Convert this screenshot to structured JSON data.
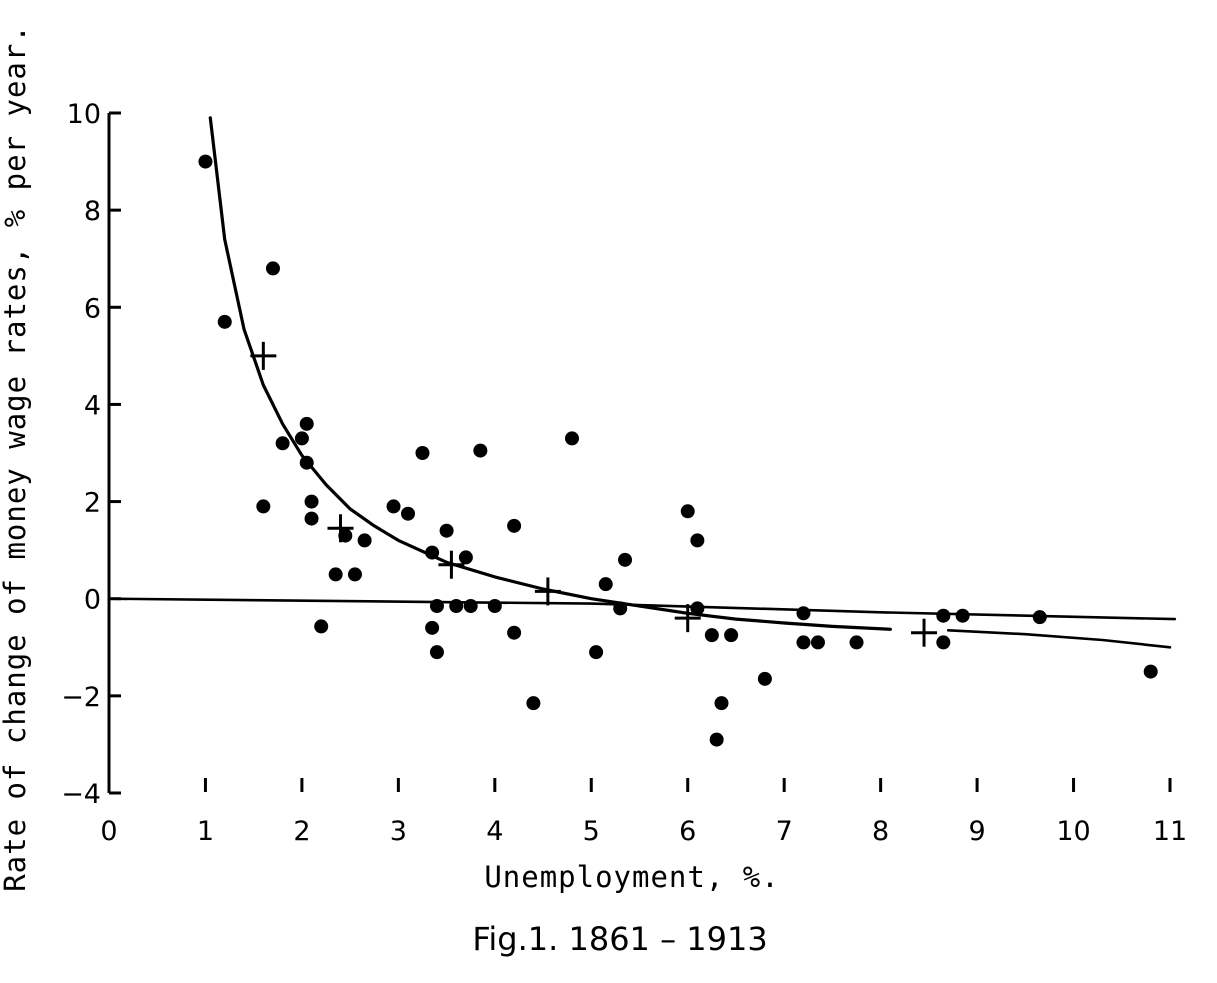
{
  "chart_data": {
    "type": "scatter",
    "title": "Fig.1. 1861 – 1913",
    "xlabel": "Unemployment, %.",
    "ylabel": "Rate of change of money wage rates, % per year.",
    "xlim": [
      0,
      11
    ],
    "ylim": [
      -4,
      10
    ],
    "x_ticks": [
      "0",
      "1",
      "2",
      "3",
      "4",
      "5",
      "6",
      "7",
      "8",
      "9",
      "10",
      "11"
    ],
    "y_ticks": [
      "10",
      "8",
      "6",
      "4",
      "2",
      "0",
      "-2",
      "-4"
    ],
    "grid": false,
    "legend": "none",
    "series": [
      {
        "marker": "dot",
        "points": [
          [
            1.0,
            9.0
          ],
          [
            1.2,
            5.7
          ],
          [
            1.6,
            1.9
          ],
          [
            1.7,
            6.8
          ],
          [
            1.8,
            3.2
          ],
          [
            2.0,
            3.3
          ],
          [
            2.05,
            3.6
          ],
          [
            2.05,
            2.8
          ],
          [
            2.1,
            2.0
          ],
          [
            2.1,
            1.65
          ],
          [
            2.2,
            -0.57
          ],
          [
            2.35,
            0.5
          ],
          [
            2.45,
            1.3
          ],
          [
            2.55,
            0.5
          ],
          [
            2.65,
            1.2
          ],
          [
            2.95,
            1.9
          ],
          [
            3.1,
            1.75
          ],
          [
            3.25,
            3.0
          ],
          [
            3.35,
            -0.6
          ],
          [
            3.35,
            0.95
          ],
          [
            3.4,
            -1.1
          ],
          [
            3.4,
            -0.15
          ],
          [
            3.5,
            1.4
          ],
          [
            3.6,
            -0.15
          ],
          [
            3.7,
            0.85
          ],
          [
            3.75,
            -0.15
          ],
          [
            3.85,
            3.05
          ],
          [
            4.0,
            -0.15
          ],
          [
            4.2,
            -0.7
          ],
          [
            4.2,
            1.5
          ],
          [
            4.4,
            -2.15
          ],
          [
            4.8,
            3.3
          ],
          [
            5.05,
            -1.1
          ],
          [
            5.15,
            0.3
          ],
          [
            5.3,
            -0.2
          ],
          [
            5.35,
            0.8
          ],
          [
            6.0,
            1.8
          ],
          [
            6.1,
            1.2
          ],
          [
            6.1,
            -0.2
          ],
          [
            6.25,
            -0.75
          ],
          [
            6.3,
            -2.9
          ],
          [
            6.35,
            -2.15
          ],
          [
            6.45,
            -0.75
          ],
          [
            6.8,
            -1.65
          ],
          [
            7.2,
            -0.3
          ],
          [
            7.2,
            -0.9
          ],
          [
            7.35,
            -0.9
          ],
          [
            7.75,
            -0.9
          ],
          [
            8.65,
            -0.35
          ],
          [
            8.65,
            -0.9
          ],
          [
            8.85,
            -0.35
          ],
          [
            9.65,
            -0.38
          ],
          [
            10.8,
            -1.5
          ]
        ]
      },
      {
        "marker": "cross",
        "points": [
          [
            1.6,
            5.0
          ],
          [
            2.4,
            1.45
          ],
          [
            3.55,
            0.7
          ],
          [
            4.55,
            0.15
          ],
          [
            6.0,
            -0.4
          ],
          [
            8.45,
            -0.7
          ]
        ]
      }
    ],
    "curves": [
      {
        "kind": "fitted",
        "points": [
          [
            1.05,
            9.9
          ],
          [
            1.2,
            7.4
          ],
          [
            1.4,
            5.55
          ],
          [
            1.6,
            4.4
          ],
          [
            1.8,
            3.6
          ],
          [
            2.0,
            2.95
          ],
          [
            2.25,
            2.35
          ],
          [
            2.5,
            1.85
          ],
          [
            2.75,
            1.5
          ],
          [
            3.0,
            1.2
          ],
          [
            3.5,
            0.75
          ],
          [
            4.0,
            0.45
          ],
          [
            4.5,
            0.2
          ],
          [
            5.0,
            0.0
          ],
          [
            5.5,
            -0.15
          ],
          [
            6.0,
            -0.3
          ],
          [
            6.5,
            -0.42
          ],
          [
            7.0,
            -0.5
          ],
          [
            7.5,
            -0.57
          ],
          [
            8.1,
            -0.63
          ]
        ]
      },
      {
        "kind": "tail",
        "points": [
          [
            8.7,
            -0.65
          ],
          [
            9.5,
            -0.73
          ],
          [
            10.3,
            -0.85
          ],
          [
            11.0,
            -1.0
          ]
        ]
      },
      {
        "kind": "reference",
        "points": [
          [
            0.0,
            0.0
          ],
          [
            5.0,
            -0.1
          ],
          [
            8.0,
            -0.28
          ],
          [
            11.05,
            -0.42
          ]
        ]
      }
    ]
  }
}
